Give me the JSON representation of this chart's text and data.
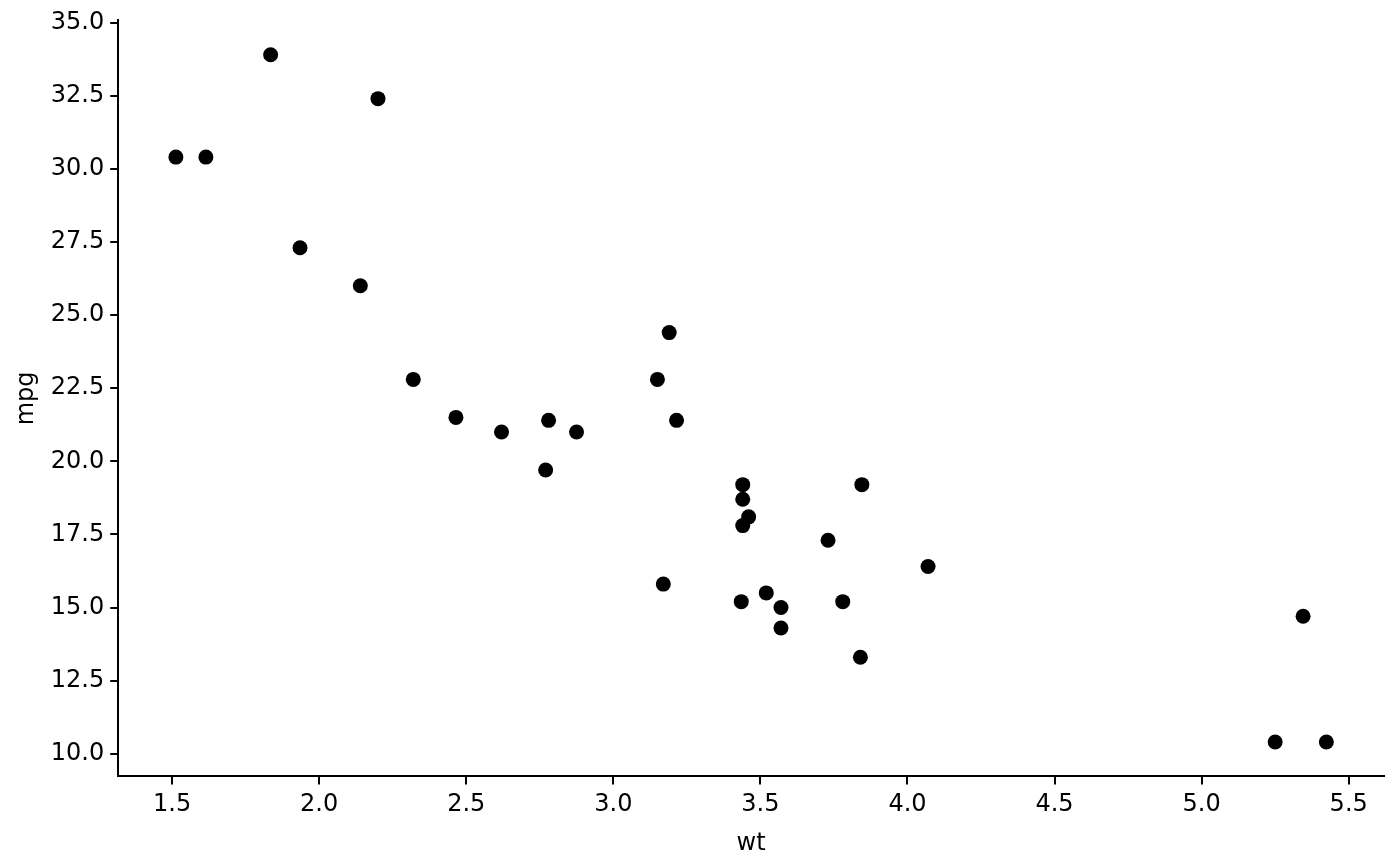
{
  "chart_data": {
    "type": "scatter",
    "xlabel": "wt",
    "ylabel": "mpg",
    "marker": "circle",
    "grid": false,
    "legend": false,
    "xlim": [
      1.317,
      5.62
    ],
    "ylim": [
      9.225,
      35.075
    ],
    "xticks": [
      {
        "value": 1.5,
        "label": "1.5"
      },
      {
        "value": 2,
        "label": "2.0"
      },
      {
        "value": 2.5,
        "label": "2.5"
      },
      {
        "value": 3,
        "label": "3.0"
      },
      {
        "value": 3.5,
        "label": "3.5"
      },
      {
        "value": 4,
        "label": "4.0"
      },
      {
        "value": 4.5,
        "label": "4.5"
      },
      {
        "value": 5,
        "label": "5.0"
      },
      {
        "value": 5.5,
        "label": "5.5"
      }
    ],
    "yticks": [
      {
        "value": 10,
        "label": "10.0"
      },
      {
        "value": 12.5,
        "label": "12.5"
      },
      {
        "value": 15,
        "label": "15.0"
      },
      {
        "value": 17.5,
        "label": "17.5"
      },
      {
        "value": 20,
        "label": "20.0"
      },
      {
        "value": 22.5,
        "label": "22.5"
      },
      {
        "value": 25,
        "label": "25.0"
      },
      {
        "value": 27.5,
        "label": "27.5"
      },
      {
        "value": 30,
        "label": "30.0"
      },
      {
        "value": 32.5,
        "label": "32.5"
      },
      {
        "value": 35,
        "label": "35.0"
      }
    ],
    "series": [
      {
        "color": "#000000",
        "x": [
          2.62,
          2.875,
          2.32,
          3.215,
          3.44,
          3.46,
          3.57,
          3.19,
          3.15,
          3.44,
          3.44,
          4.07,
          3.73,
          3.78,
          5.25,
          5.424,
          5.345,
          2.2,
          1.615,
          1.835,
          2.465,
          3.52,
          3.435,
          3.84,
          3.845,
          1.935,
          2.14,
          1.513,
          3.17,
          2.77,
          3.57,
          2.78
        ],
        "values": [
          21.0,
          21.0,
          22.8,
          21.4,
          18.7,
          18.1,
          14.3,
          24.4,
          22.8,
          19.2,
          17.8,
          16.4,
          17.3,
          15.2,
          10.4,
          10.4,
          14.7,
          32.4,
          30.4,
          33.9,
          21.5,
          15.5,
          15.2,
          13.3,
          19.2,
          27.3,
          26.0,
          30.4,
          15.8,
          19.7,
          15.0,
          21.4
        ]
      }
    ]
  }
}
